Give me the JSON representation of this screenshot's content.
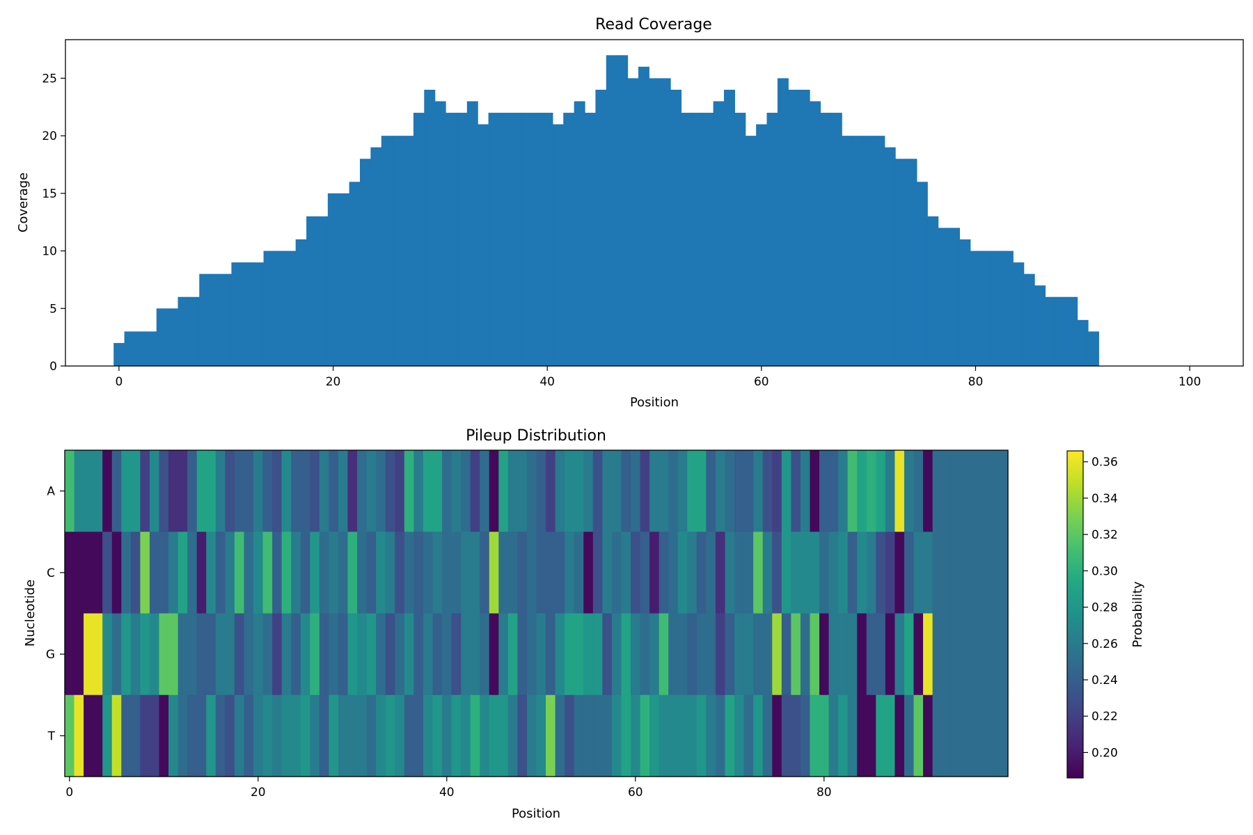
{
  "chart_data": [
    {
      "type": "bar",
      "title": "Read Coverage",
      "xlabel": "Position",
      "ylabel": "Coverage",
      "xlim": [
        -5,
        105
      ],
      "ylim": [
        0,
        28.35
      ],
      "xticks": [
        0,
        20,
        40,
        60,
        80,
        100
      ],
      "yticks": [
        0,
        5,
        10,
        15,
        20,
        25
      ],
      "grid": false,
      "x": [
        0,
        1,
        2,
        3,
        4,
        5,
        6,
        7,
        8,
        9,
        10,
        11,
        12,
        13,
        14,
        15,
        16,
        17,
        18,
        19,
        20,
        21,
        22,
        23,
        24,
        25,
        26,
        27,
        28,
        29,
        30,
        31,
        32,
        33,
        34,
        35,
        36,
        37,
        38,
        39,
        40,
        41,
        42,
        43,
        44,
        45,
        46,
        47,
        48,
        49,
        50,
        51,
        52,
        53,
        54,
        55,
        56,
        57,
        58,
        59,
        60,
        61,
        62,
        63,
        64,
        65,
        66,
        67,
        68,
        69,
        70,
        71,
        72,
        73,
        74,
        75,
        76,
        77,
        78,
        79,
        80,
        81,
        82,
        83,
        84,
        85,
        86,
        87,
        88,
        89,
        90,
        91
      ],
      "values": [
        2,
        3,
        3,
        3,
        5,
        5,
        6,
        6,
        8,
        8,
        8,
        9,
        9,
        9,
        10,
        10,
        10,
        11,
        13,
        13,
        15,
        15,
        16,
        18,
        19,
        20,
        20,
        20,
        22,
        24,
        23,
        22,
        22,
        23,
        21,
        22,
        22,
        22,
        22,
        22,
        22,
        21,
        22,
        23,
        22,
        24,
        27,
        27,
        25,
        26,
        25,
        25,
        24,
        22,
        22,
        22,
        23,
        24,
        22,
        20,
        21,
        22,
        25,
        24,
        24,
        23,
        22,
        22,
        20,
        20,
        20,
        20,
        19,
        18,
        18,
        16,
        13,
        12,
        12,
        11,
        10,
        10,
        10,
        10,
        9,
        8,
        7,
        6,
        6,
        6,
        4,
        3
      ],
      "color": "#1f77b4"
    },
    {
      "type": "heatmap",
      "title": "Pileup Distribution",
      "xlabel": "Position",
      "ylabel": "Nucleotide",
      "rows": [
        "A",
        "C",
        "G",
        "T"
      ],
      "xticks": [
        0,
        20,
        40,
        60,
        80
      ],
      "n_positions": 100,
      "colorbar": {
        "label": "Probability",
        "min": 0.186,
        "max": 0.366,
        "ticks": [
          "0.20",
          "0.22",
          "0.24",
          "0.26",
          "0.28",
          "0.30",
          "0.32",
          "0.34",
          "0.36"
        ]
      },
      "colormap": "viridis",
      "fill_value": 0.25,
      "values": [
        [
          0.31,
          0.27,
          0.27,
          0.27,
          0.19,
          0.24,
          0.28,
          0.28,
          0.22,
          0.27,
          0.23,
          0.21,
          0.21,
          0.24,
          0.29,
          0.29,
          0.26,
          0.23,
          0.24,
          0.24,
          0.26,
          0.24,
          0.23,
          0.27,
          0.24,
          0.24,
          0.23,
          0.26,
          0.24,
          0.26,
          0.21,
          0.25,
          0.26,
          0.25,
          0.23,
          0.22,
          0.3,
          0.26,
          0.29,
          0.29,
          0.25,
          0.26,
          0.25,
          0.22,
          0.25,
          0.19,
          0.29,
          0.26,
          0.26,
          0.25,
          0.24,
          0.22,
          0.26,
          0.27,
          0.27,
          0.26,
          0.23,
          0.26,
          0.26,
          0.24,
          0.25,
          0.22,
          0.26,
          0.26,
          0.25,
          0.26,
          0.29,
          0.29,
          0.24,
          0.26,
          0.25,
          0.24,
          0.24,
          0.26,
          0.23,
          0.22,
          0.28,
          0.23,
          0.26,
          0.19,
          0.24,
          0.24,
          0.26,
          0.31,
          0.29,
          0.3,
          0.29,
          0.26,
          0.36,
          0.26,
          0.25,
          0.19
        ],
        [
          0.19,
          0.19,
          0.19,
          0.19,
          0.23,
          0.19,
          0.25,
          0.23,
          0.33,
          0.24,
          0.24,
          0.26,
          0.29,
          0.25,
          0.2,
          0.27,
          0.24,
          0.26,
          0.31,
          0.25,
          0.27,
          0.31,
          0.24,
          0.3,
          0.26,
          0.24,
          0.28,
          0.25,
          0.26,
          0.25,
          0.3,
          0.25,
          0.24,
          0.27,
          0.26,
          0.23,
          0.25,
          0.24,
          0.25,
          0.26,
          0.25,
          0.25,
          0.26,
          0.26,
          0.24,
          0.34,
          0.25,
          0.25,
          0.24,
          0.25,
          0.24,
          0.24,
          0.24,
          0.26,
          0.25,
          0.19,
          0.23,
          0.26,
          0.25,
          0.26,
          0.23,
          0.24,
          0.2,
          0.24,
          0.25,
          0.27,
          0.26,
          0.24,
          0.25,
          0.21,
          0.26,
          0.25,
          0.25,
          0.32,
          0.26,
          0.23,
          0.28,
          0.27,
          0.27,
          0.27,
          0.25,
          0.26,
          0.27,
          0.24,
          0.27,
          0.26,
          0.23,
          0.22,
          0.19,
          0.24,
          0.26,
          0.26
        ],
        [
          0.19,
          0.19,
          0.36,
          0.36,
          0.27,
          0.25,
          0.28,
          0.26,
          0.28,
          0.27,
          0.32,
          0.32,
          0.25,
          0.25,
          0.24,
          0.24,
          0.26,
          0.26,
          0.23,
          0.25,
          0.26,
          0.25,
          0.22,
          0.26,
          0.24,
          0.27,
          0.3,
          0.24,
          0.25,
          0.24,
          0.28,
          0.27,
          0.28,
          0.25,
          0.23,
          0.25,
          0.27,
          0.24,
          0.26,
          0.24,
          0.25,
          0.23,
          0.26,
          0.26,
          0.25,
          0.19,
          0.26,
          0.29,
          0.24,
          0.25,
          0.26,
          0.24,
          0.27,
          0.29,
          0.29,
          0.28,
          0.28,
          0.23,
          0.26,
          0.29,
          0.26,
          0.25,
          0.26,
          0.31,
          0.25,
          0.25,
          0.24,
          0.25,
          0.25,
          0.22,
          0.24,
          0.26,
          0.26,
          0.25,
          0.25,
          0.34,
          0.24,
          0.32,
          0.25,
          0.32,
          0.19,
          0.26,
          0.26,
          0.26,
          0.19,
          0.24,
          0.24,
          0.19,
          0.26,
          0.29,
          0.19,
          0.36
        ],
        [
          0.32,
          0.36,
          0.19,
          0.19,
          0.28,
          0.35,
          0.24,
          0.24,
          0.22,
          0.22,
          0.19,
          0.27,
          0.25,
          0.24,
          0.24,
          0.28,
          0.24,
          0.23,
          0.26,
          0.24,
          0.26,
          0.27,
          0.26,
          0.27,
          0.27,
          0.28,
          0.26,
          0.24,
          0.28,
          0.26,
          0.26,
          0.26,
          0.25,
          0.27,
          0.28,
          0.27,
          0.24,
          0.24,
          0.27,
          0.28,
          0.26,
          0.28,
          0.27,
          0.3,
          0.27,
          0.28,
          0.28,
          0.26,
          0.23,
          0.26,
          0.27,
          0.33,
          0.25,
          0.23,
          0.25,
          0.25,
          0.25,
          0.25,
          0.27,
          0.29,
          0.27,
          0.3,
          0.28,
          0.27,
          0.27,
          0.27,
          0.27,
          0.28,
          0.26,
          0.25,
          0.29,
          0.27,
          0.25,
          0.28,
          0.25,
          0.19,
          0.23,
          0.23,
          0.24,
          0.3,
          0.3,
          0.26,
          0.28,
          0.26,
          0.19,
          0.19,
          0.29,
          0.29,
          0.19,
          0.25,
          0.32,
          0.19
        ]
      ]
    }
  ]
}
